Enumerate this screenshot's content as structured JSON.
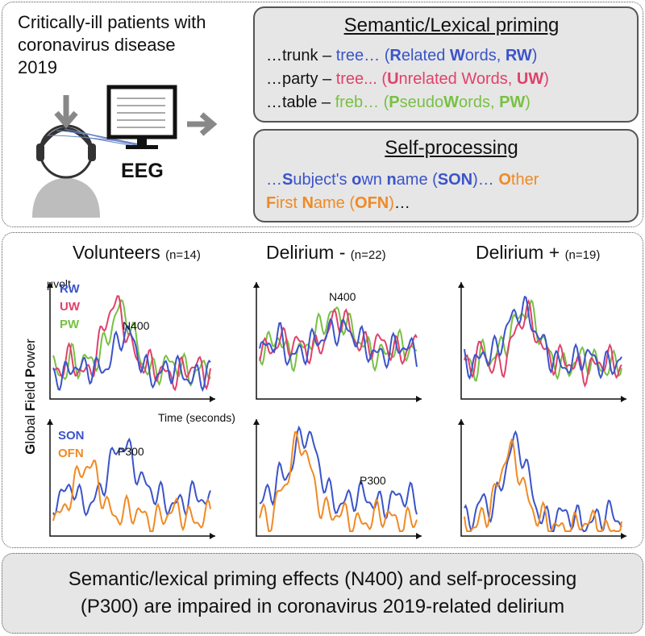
{
  "intro": {
    "title": "Critically-ill patients with coronavirus disease 2019",
    "device": "EEG"
  },
  "semantic_priming": {
    "title": "Semantic/Lexical priming",
    "lines": [
      [
        "…trunk – ",
        "tree… (",
        "R",
        "elated ",
        "W",
        "ords, ",
        "RW",
        ")"
      ],
      [
        "…party – ",
        "tree... (",
        "U",
        "nrelated ",
        "W",
        "ords, ",
        "UW",
        ")"
      ],
      [
        "…table – ",
        "freb… (",
        "P",
        "seudo",
        "W",
        "ords, ",
        "PW",
        ")"
      ]
    ]
  },
  "self_processing": {
    "title": "Self-processing",
    "lines": [
      [
        "…",
        "S",
        "ubject's ",
        "o",
        "wn ",
        "n",
        "ame (",
        "SON",
        ")… ",
        "O",
        "ther"
      ],
      [
        "F",
        "irst ",
        "N",
        "ame (",
        "OFN",
        ")",
        "…"
      ]
    ]
  },
  "panels": {
    "y_label": "μvolt",
    "x_label": "Time (seconds)",
    "axis_title": [
      "G",
      "lobal ",
      "F",
      "ield ",
      "P",
      "ower"
    ],
    "groups": [
      {
        "name": "Volunteers",
        "n": "(n=14)"
      },
      {
        "name": "Delirium -",
        "n": "(n=22)"
      },
      {
        "name": "Delirium +",
        "n": "(n=19)"
      }
    ],
    "legend_top": [
      "RW",
      "UW",
      "PW"
    ],
    "legend_bottom": [
      "SON",
      "OFN"
    ],
    "annotations": [
      "N400",
      "N400",
      "P300",
      "P300"
    ]
  },
  "conclusion": [
    "Semantic/lexical priming effects (N400) and self-processing",
    "(P300) are impaired in coronavirus 2019-related delirium"
  ]
}
